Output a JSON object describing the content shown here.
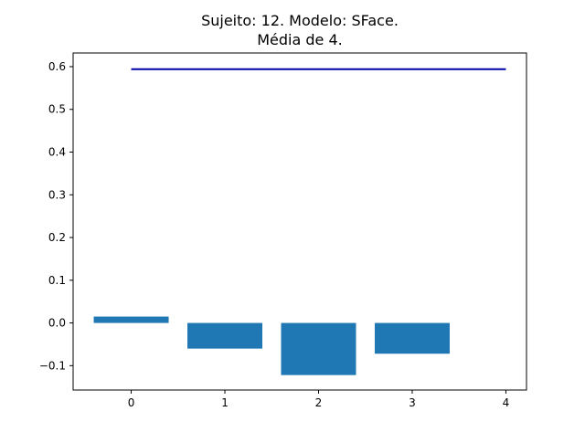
{
  "chart_data": {
    "type": "bar",
    "title_line1": "Sujeito: 12. Modelo: SFace.",
    "title_line2": "Média de 4.",
    "xlabel": "",
    "ylabel": "",
    "categories": [
      0,
      1,
      2,
      3
    ],
    "values": [
      0.015,
      -0.06,
      -0.122,
      -0.072
    ],
    "bar_color": "#1f77b4",
    "mean_line": {
      "x": [
        0,
        4
      ],
      "y": 0.594,
      "color": "#0000aa"
    },
    "xlim": [
      -0.62,
      4.22
    ],
    "ylim": [
      -0.157,
      0.632
    ],
    "xticks": [
      0,
      1,
      2,
      3,
      4
    ],
    "xtick_labels": [
      "0",
      "1",
      "2",
      "3",
      "4"
    ],
    "yticks": [
      -0.1,
      0.0,
      0.1,
      0.2,
      0.3,
      0.4,
      0.5,
      0.6
    ],
    "ytick_labels": [
      "−0.1",
      "0.0",
      "0.1",
      "0.2",
      "0.3",
      "0.4",
      "0.5",
      "0.6"
    ],
    "grid": false,
    "legend": "none"
  }
}
